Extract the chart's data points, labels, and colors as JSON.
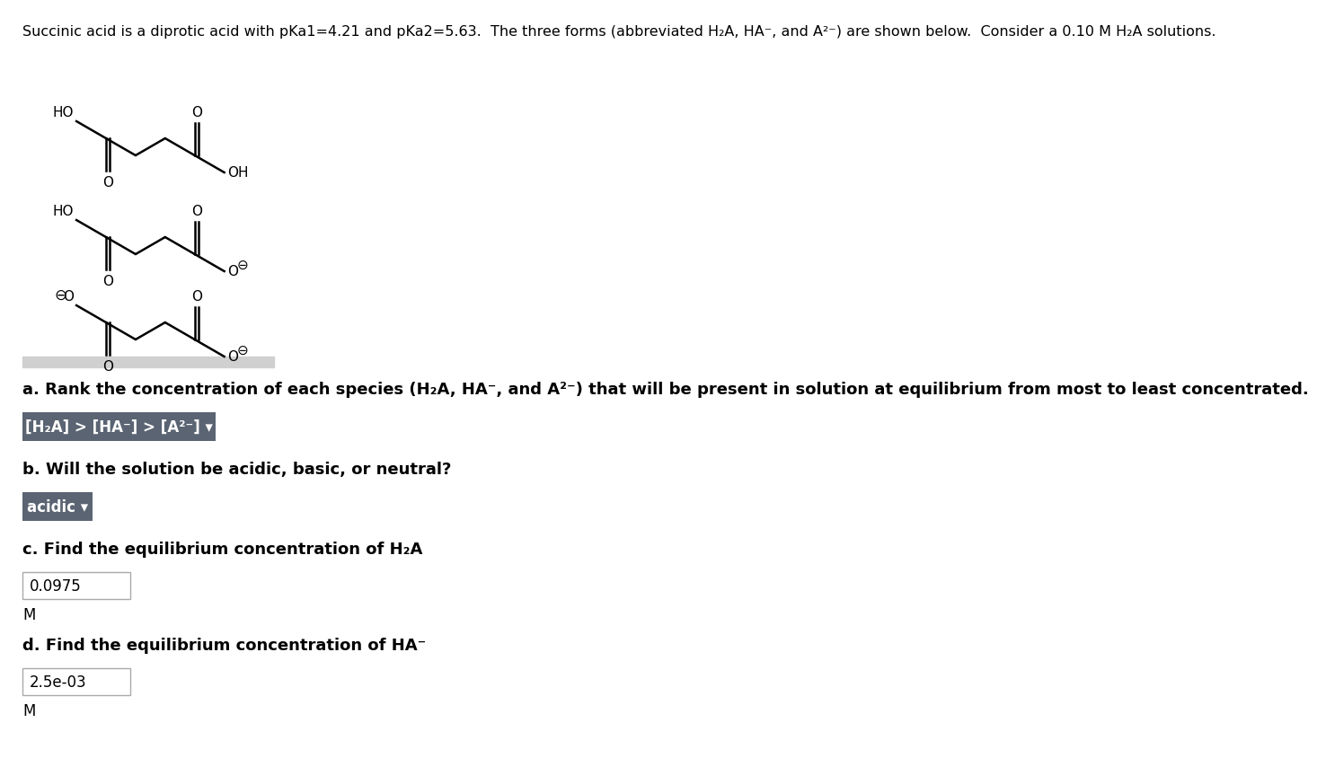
{
  "title_text": "Succinic acid is a diprotic acid with pKa1=4.21 and pKa2=5.63.  The three forms (abbreviated H₂A, HA⁻, and A²⁻) are shown below.  Consider a 0.10 M H₂A solutions.",
  "background_color": "#ffffff",
  "section_a_label": "a. Rank the concentration of each species (H₂A, HA⁻, and A²⁻) that will be present in solution at equilibrium from most to least concentrated.",
  "section_a_answer": "[H₂A] > [HA⁻] > [A²⁻] ▾",
  "section_b_label": "b. Will the solution be acidic, basic, or neutral?",
  "section_b_answer": "acidic ▾",
  "section_c_label": "c. Find the equilibrium concentration of H₂A",
  "section_c_answer": "0.0975",
  "section_c_unit": "M",
  "section_d_label": "d. Find the equilibrium concentration of HA⁻",
  "section_d_answer": "2.5e-03",
  "section_d_unit": "M",
  "button_color": "#5a6472",
  "button_text_color": "#ffffff",
  "input_box_color": "#ffffff",
  "input_box_border": "#aaaaaa",
  "text_color": "#000000",
  "label_fontsize": 13,
  "answer_fontsize": 12,
  "title_fontsize": 11.5
}
